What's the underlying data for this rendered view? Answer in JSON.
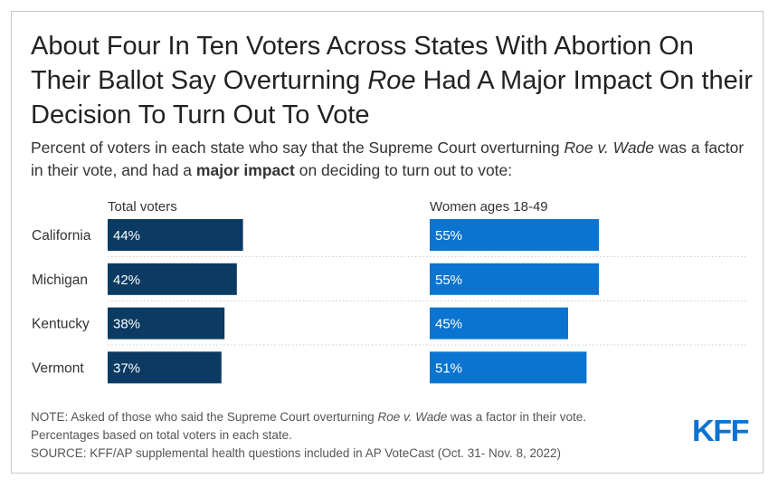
{
  "title": {
    "pre": "About Four In Ten Voters Across States With Abortion On Their Ballot Say Overturning ",
    "em": "Roe",
    "post": " Had A Major Impact On their Decision To Turn Out To Vote"
  },
  "subtitle": {
    "part1": "Percent of voters in each state who say that the Supreme Court overturning ",
    "em": "Roe v. Wade",
    "part2": " was a factor in their vote, and had a ",
    "bold": "major impact",
    "part3": " on deciding to turn out to vote:"
  },
  "colors": {
    "total_voters": "#0b3a62",
    "women_18_49": "#0a74d0",
    "separator": "#cccccc",
    "logo": "#0a74d0"
  },
  "chart_data": {
    "type": "bar",
    "orientation": "horizontal",
    "categories": [
      "California",
      "Michigan",
      "Kentucky",
      "Vermont"
    ],
    "series": [
      {
        "name": "Total voters",
        "values": [
          44,
          42,
          38,
          37
        ],
        "labels": [
          "44%",
          "42%",
          "38%",
          "37%"
        ]
      },
      {
        "name": "Women ages 18-49",
        "values": [
          55,
          55,
          45,
          51
        ],
        "labels": [
          "55%",
          "55%",
          "45%",
          "51%"
        ]
      }
    ],
    "xlim": [
      0,
      100
    ],
    "unit": "%",
    "grid": false
  },
  "notes": {
    "note_pre": "NOTE: Asked of those who said the Supreme Court overturning ",
    "note_em": "Roe v. Wade",
    "note_post": " was a factor in their vote.",
    "note_line2": "Percentages based on total voters in each state.",
    "source": "SOURCE: KFF/AP supplemental health questions included in AP VoteCast (Oct. 31- Nov. 8, 2022)"
  },
  "logo": {
    "text": "KFF"
  }
}
